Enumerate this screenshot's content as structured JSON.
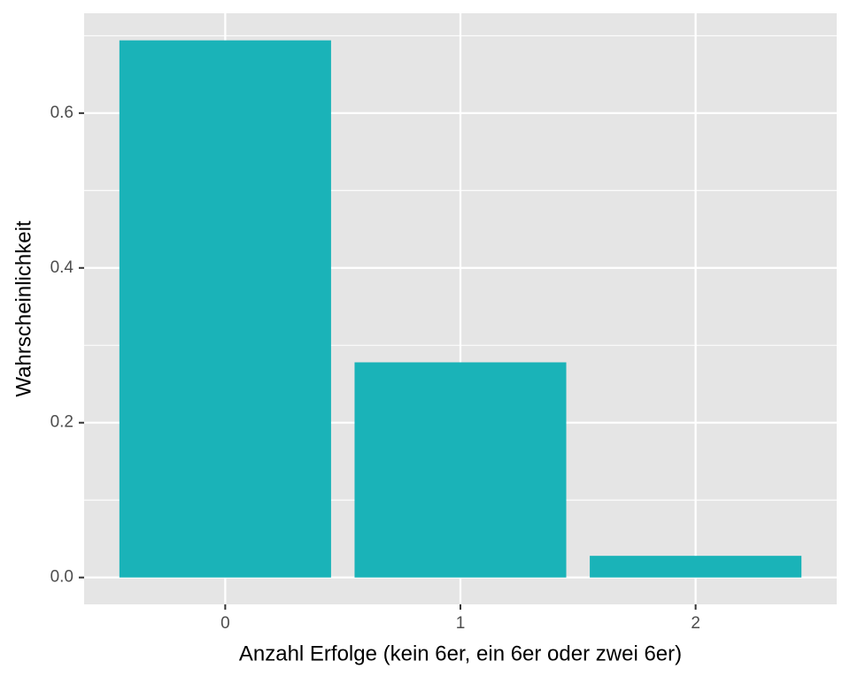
{
  "chart_data": {
    "type": "bar",
    "x_label": "Anzahl Erfolge (kein 6er, ein 6er oder zwei 6er)",
    "y_label": "Wahrscheinlichkeit",
    "categories": [
      "0",
      "1",
      "2"
    ],
    "values": [
      0.694,
      0.278,
      0.028
    ],
    "color": "#1ab3b8",
    "ylim": [
      -0.0347,
      0.729
    ],
    "yticks": [
      {
        "value": 0,
        "label": "0.0"
      },
      0.2,
      0.4,
      0.6
    ],
    "y_minor_grid": [
      0.1,
      0.3,
      0.5,
      0.7
    ],
    "grid": true
  }
}
